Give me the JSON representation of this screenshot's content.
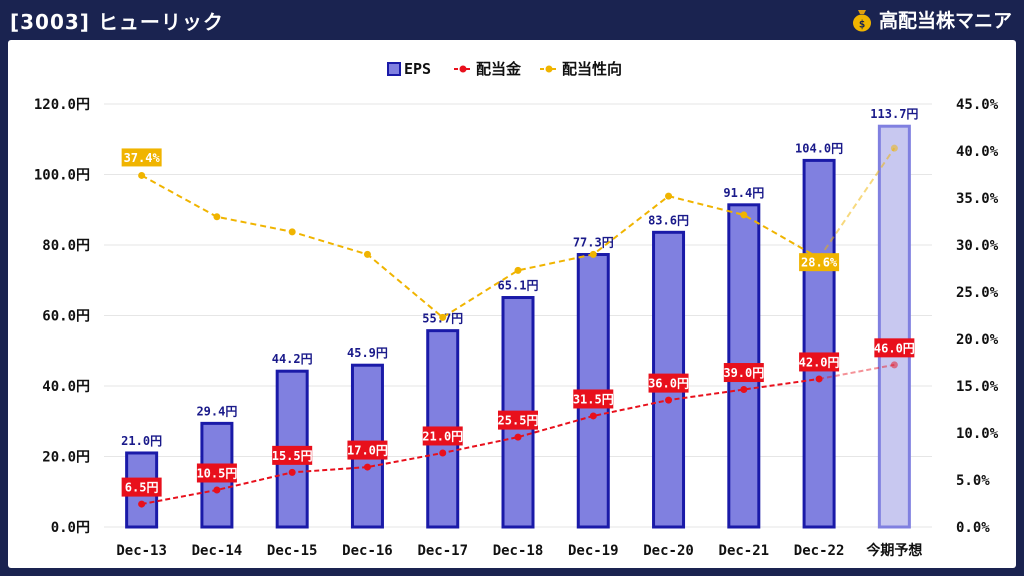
{
  "header": {
    "title": "[3003] ヒューリック",
    "brand": "高配当株マニア",
    "brand_icon": "money-bag-icon"
  },
  "colors": {
    "background": "#1a2350",
    "eps_fill": "#8080e0",
    "eps_border": "#1a1aa8",
    "forecast_fill": "#c8c8f0",
    "forecast_border": "#8080e0",
    "dividend": "#e8101c",
    "payout": "#f0b400"
  },
  "chart_data": {
    "type": "bar",
    "categories": [
      "Dec-13",
      "Dec-14",
      "Dec-15",
      "Dec-16",
      "Dec-17",
      "Dec-18",
      "Dec-19",
      "Dec-20",
      "Dec-21",
      "Dec-22",
      "今期予想"
    ],
    "legend": [
      "EPS",
      "配当金",
      "配当性向"
    ],
    "legend_position": "top-center",
    "series": [
      {
        "name": "EPS",
        "type": "bar",
        "axis": "left",
        "values": [
          21.0,
          29.4,
          44.2,
          45.9,
          55.7,
          65.1,
          77.3,
          83.6,
          91.4,
          104.0,
          113.7
        ],
        "labels": [
          "21.0円",
          "29.4円",
          "44.2円",
          "45.9円",
          "55.7円",
          "65.1円",
          "77.3円",
          "83.6円",
          "91.4円",
          "104.0円",
          "113.7円"
        ]
      },
      {
        "name": "配当金",
        "type": "line",
        "axis": "left",
        "values": [
          6.5,
          10.5,
          15.5,
          17.0,
          21.0,
          25.5,
          31.5,
          36.0,
          39.0,
          42.0,
          46.0
        ],
        "labels": [
          "6.5円",
          "10.5円",
          "15.5円",
          "17.0円",
          "21.0円",
          "25.5円",
          "31.5円",
          "36.0円",
          "39.0円",
          "42.0円",
          "46.0円"
        ]
      },
      {
        "name": "配当性向",
        "type": "line",
        "axis": "right",
        "values": [
          37.4,
          33.0,
          31.4,
          29.0,
          22.3,
          27.3,
          29.0,
          35.2,
          33.2,
          28.6,
          40.3
        ],
        "labels": [
          "37.4%",
          "",
          "",
          "",
          "",
          "",
          "",
          "",
          "",
          "28.6%",
          ""
        ]
      }
    ],
    "ylim": [
      0,
      120
    ],
    "y2lim": [
      0,
      45
    ],
    "yticks": [
      "0.0円",
      "20.0円",
      "40.0円",
      "60.0円",
      "80.0円",
      "100.0円",
      "120.0円"
    ],
    "y2ticks": [
      "0.0%",
      "5.0%",
      "10.0%",
      "15.0%",
      "20.0%",
      "25.0%",
      "30.0%",
      "35.0%",
      "40.0%",
      "45.0%"
    ],
    "grid": true
  }
}
